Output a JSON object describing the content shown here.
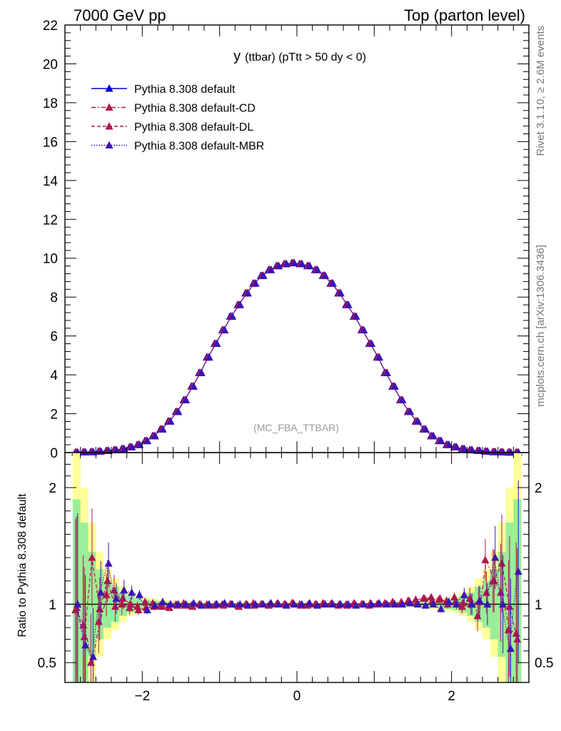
{
  "header": {
    "left": "7000 GeV pp",
    "right": "Top (parton level)"
  },
  "side_labels": {
    "rivet": "Rivet 3.1.10, ≥ 2.6M events",
    "mcplots": "mcplots.cern.ch [arXiv:1306.3436]"
  },
  "chart_data": {
    "type": "line",
    "title_main": "y",
    "title_rest": "(ttbar) (pTtt > 50 dy < 0)",
    "watermark": "(MC_FBA_TTBAR)",
    "main_ylim": [
      0,
      22
    ],
    "main_yticks": [
      "0",
      "2",
      "4",
      "6",
      "8",
      "10",
      "12",
      "14",
      "16",
      "18",
      "20",
      "22"
    ],
    "xlim": [
      -3.0,
      3.0
    ],
    "xticks": [
      "−2",
      "0",
      "2"
    ],
    "x": [
      -2.85,
      -2.75,
      -2.65,
      -2.55,
      -2.45,
      -2.35,
      -2.25,
      -2.15,
      -2.05,
      -1.95,
      -1.85,
      -1.75,
      -1.65,
      -1.55,
      -1.45,
      -1.35,
      -1.25,
      -1.15,
      -1.05,
      -0.95,
      -0.85,
      -0.75,
      -0.65,
      -0.55,
      -0.45,
      -0.35,
      -0.25,
      -0.15,
      -0.05,
      0.05,
      0.15,
      0.25,
      0.35,
      0.45,
      0.55,
      0.65,
      0.75,
      0.85,
      0.95,
      1.05,
      1.15,
      1.25,
      1.35,
      1.45,
      1.55,
      1.65,
      1.75,
      1.85,
      1.95,
      2.05,
      2.15,
      2.25,
      2.35,
      2.45,
      2.55,
      2.65,
      2.75,
      2.85
    ],
    "series": [
      {
        "name": "Pythia 8.308 default",
        "color": "#0000cc",
        "dash": "",
        "values": [
          0.01,
          0.02,
          0.03,
          0.06,
          0.09,
          0.13,
          0.19,
          0.28,
          0.4,
          0.6,
          0.85,
          1.2,
          1.6,
          2.1,
          2.7,
          3.4,
          4.1,
          4.9,
          5.6,
          6.3,
          7.0,
          7.6,
          8.2,
          8.7,
          9.1,
          9.4,
          9.6,
          9.7,
          9.75,
          9.7,
          9.6,
          9.4,
          9.1,
          8.7,
          8.2,
          7.6,
          7.0,
          6.3,
          5.6,
          4.9,
          4.1,
          3.4,
          2.7,
          2.1,
          1.6,
          1.2,
          0.85,
          0.6,
          0.4,
          0.28,
          0.19,
          0.13,
          0.09,
          0.06,
          0.03,
          0.02,
          0.01,
          0.005
        ]
      },
      {
        "name": "Pythia 8.308 default-CD",
        "color": "#b0174b",
        "dash": "6 3 2 3",
        "values": [
          0.01,
          0.02,
          0.03,
          0.06,
          0.09,
          0.13,
          0.19,
          0.28,
          0.4,
          0.6,
          0.85,
          1.2,
          1.6,
          2.1,
          2.7,
          3.4,
          4.1,
          4.9,
          5.6,
          6.3,
          7.0,
          7.6,
          8.2,
          8.7,
          9.1,
          9.4,
          9.6,
          9.7,
          9.75,
          9.7,
          9.6,
          9.4,
          9.1,
          8.7,
          8.2,
          7.6,
          7.0,
          6.3,
          5.6,
          4.9,
          4.1,
          3.4,
          2.7,
          2.1,
          1.6,
          1.2,
          0.85,
          0.6,
          0.4,
          0.28,
          0.19,
          0.13,
          0.09,
          0.06,
          0.03,
          0.02,
          0.01,
          0.005
        ]
      },
      {
        "name": "Pythia 8.308 default-DL",
        "color": "#b0174b",
        "dash": "5 3",
        "values": [
          0.01,
          0.02,
          0.03,
          0.06,
          0.09,
          0.13,
          0.19,
          0.28,
          0.4,
          0.6,
          0.85,
          1.2,
          1.6,
          2.1,
          2.7,
          3.4,
          4.1,
          4.9,
          5.6,
          6.3,
          7.0,
          7.6,
          8.2,
          8.7,
          9.1,
          9.4,
          9.6,
          9.7,
          9.75,
          9.7,
          9.6,
          9.4,
          9.1,
          8.7,
          8.2,
          7.6,
          7.0,
          6.3,
          5.6,
          4.9,
          4.1,
          3.4,
          2.7,
          2.1,
          1.6,
          1.2,
          0.85,
          0.6,
          0.4,
          0.28,
          0.19,
          0.13,
          0.09,
          0.06,
          0.03,
          0.02,
          0.01,
          0.005
        ]
      },
      {
        "name": "Pythia 8.308 default-MBR",
        "color": "#3a14b8",
        "dash": "1.5 2",
        "values": [
          0.01,
          0.02,
          0.03,
          0.06,
          0.09,
          0.13,
          0.19,
          0.28,
          0.4,
          0.6,
          0.85,
          1.2,
          1.6,
          2.1,
          2.7,
          3.4,
          4.1,
          4.9,
          5.6,
          6.3,
          7.0,
          7.6,
          8.2,
          8.7,
          9.1,
          9.4,
          9.6,
          9.7,
          9.75,
          9.7,
          9.6,
          9.4,
          9.1,
          8.7,
          8.2,
          7.6,
          7.0,
          6.3,
          5.6,
          4.9,
          4.1,
          3.4,
          2.7,
          2.1,
          1.6,
          1.2,
          0.85,
          0.6,
          0.4,
          0.28,
          0.19,
          0.13,
          0.09,
          0.06,
          0.03,
          0.02,
          0.01,
          0.005
        ]
      }
    ],
    "ratio": {
      "ylabel": "Ratio to Pythia 8.308 default",
      "ylim": [
        0.33,
        2.3
      ],
      "yticks": [
        {
          "v": 0.5,
          "label": "0.5"
        },
        {
          "v": 1,
          "label": "1"
        },
        {
          "v": 2,
          "label": "2"
        }
      ],
      "band_green_halfwidth": [
        0.9,
        0.7,
        0.45,
        0.3,
        0.2,
        0.15,
        0.1,
        0.07,
        0.05,
        0.04,
        0.03,
        0.025,
        0.02,
        0.02,
        0.015,
        0.015,
        0.012,
        0.012,
        0.01,
        0.01,
        0.01,
        0.01,
        0.01,
        0.01,
        0.01,
        0.01,
        0.01,
        0.01,
        0.01,
        0.01,
        0.01,
        0.01,
        0.01,
        0.01,
        0.01,
        0.01,
        0.01,
        0.01,
        0.01,
        0.01,
        0.012,
        0.012,
        0.015,
        0.015,
        0.02,
        0.02,
        0.025,
        0.03,
        0.04,
        0.05,
        0.07,
        0.1,
        0.15,
        0.2,
        0.3,
        0.45,
        0.7,
        0.9
      ],
      "band_yellow_halfwidth": [
        1.3,
        1.0,
        0.7,
        0.45,
        0.3,
        0.22,
        0.15,
        0.1,
        0.07,
        0.06,
        0.05,
        0.04,
        0.03,
        0.03,
        0.025,
        0.02,
        0.02,
        0.02,
        0.015,
        0.015,
        0.015,
        0.015,
        0.015,
        0.015,
        0.015,
        0.015,
        0.015,
        0.015,
        0.015,
        0.015,
        0.015,
        0.015,
        0.015,
        0.015,
        0.015,
        0.015,
        0.015,
        0.015,
        0.015,
        0.015,
        0.02,
        0.02,
        0.02,
        0.025,
        0.03,
        0.03,
        0.04,
        0.05,
        0.06,
        0.07,
        0.1,
        0.15,
        0.22,
        0.3,
        0.45,
        0.7,
        1.0,
        1.3
      ],
      "series": [
        {
          "name": "Pythia 8.308 default-CD",
          "values": [
            0.95,
            0.82,
            0.5,
            0.85,
            1.08,
            1.12,
            1.0,
            0.97,
            0.98,
            1.02,
            1.01,
            0.99,
            0.98,
            1.0,
            1.01,
            0.99,
            1.0,
            1.0,
            0.99,
            1.0,
            1.0,
            0.99,
            1.0,
            1.01,
            1.0,
            0.99,
            1.0,
            1.0,
            1.01,
            1.0,
            0.99,
            1.0,
            1.01,
            1.0,
            0.99,
            1.0,
            1.01,
            1.0,
            0.99,
            1.0,
            1.01,
            1.02,
            1.0,
            1.03,
            1.04,
            1.05,
            1.06,
            1.04,
            1.03,
            1.06,
            0.98,
            1.05,
            0.9,
            1.38,
            1.2,
            1.1,
            0.78,
            0.75
          ]
        },
        {
          "name": "Pythia 8.308 default-DL",
          "values": [
            0.97,
            0.72,
            1.4,
            0.96,
            1.2,
            0.98,
            1.05,
            1.0,
            0.95,
            0.97,
            0.98,
            0.98,
            0.97,
            0.99,
            0.99,
            0.98,
            1.0,
            0.99,
            1.0,
            0.99,
            1.0,
            0.98,
            1.0,
            0.99,
            1.0,
            1.0,
            1.01,
            1.0,
            1.01,
            0.99,
            1.0,
            1.0,
            1.0,
            1.01,
            1.0,
            0.99,
            1.0,
            1.0,
            1.01,
            1.0,
            1.0,
            1.01,
            1.02,
            1.03,
            1.01,
            1.05,
            1.03,
            1.05,
            1.0,
            1.02,
            1.01,
            1.0,
            1.02,
            1.1,
            1.2,
            1.35,
            0.98,
            0.7
          ]
        },
        {
          "name": "Pythia 8.308 default-MBR",
          "values": [
            1.0,
            0.65,
            0.55,
            1.1,
            1.35,
            1.05,
            1.12,
            1.1,
            1.08,
            0.95,
            0.99,
            1.02,
            1.0,
            1.0,
            1.0,
            1.01,
            0.99,
            1.0,
            1.0,
            1.01,
            1.0,
            1.0,
            0.99,
            1.0,
            1.0,
            1.01,
            1.0,
            0.99,
            1.0,
            1.0,
            1.01,
            0.99,
            1.0,
            1.0,
            1.0,
            1.0,
            0.99,
            1.0,
            1.0,
            1.01,
            1.0,
            1.0,
            1.0,
            1.01,
            1.0,
            0.99,
            1.0,
            0.96,
            1.02,
            1.0,
            1.08,
            1.0,
            1.03,
            1.0,
            1.4,
            1.0,
            0.62,
            1.28
          ]
        }
      ]
    }
  }
}
